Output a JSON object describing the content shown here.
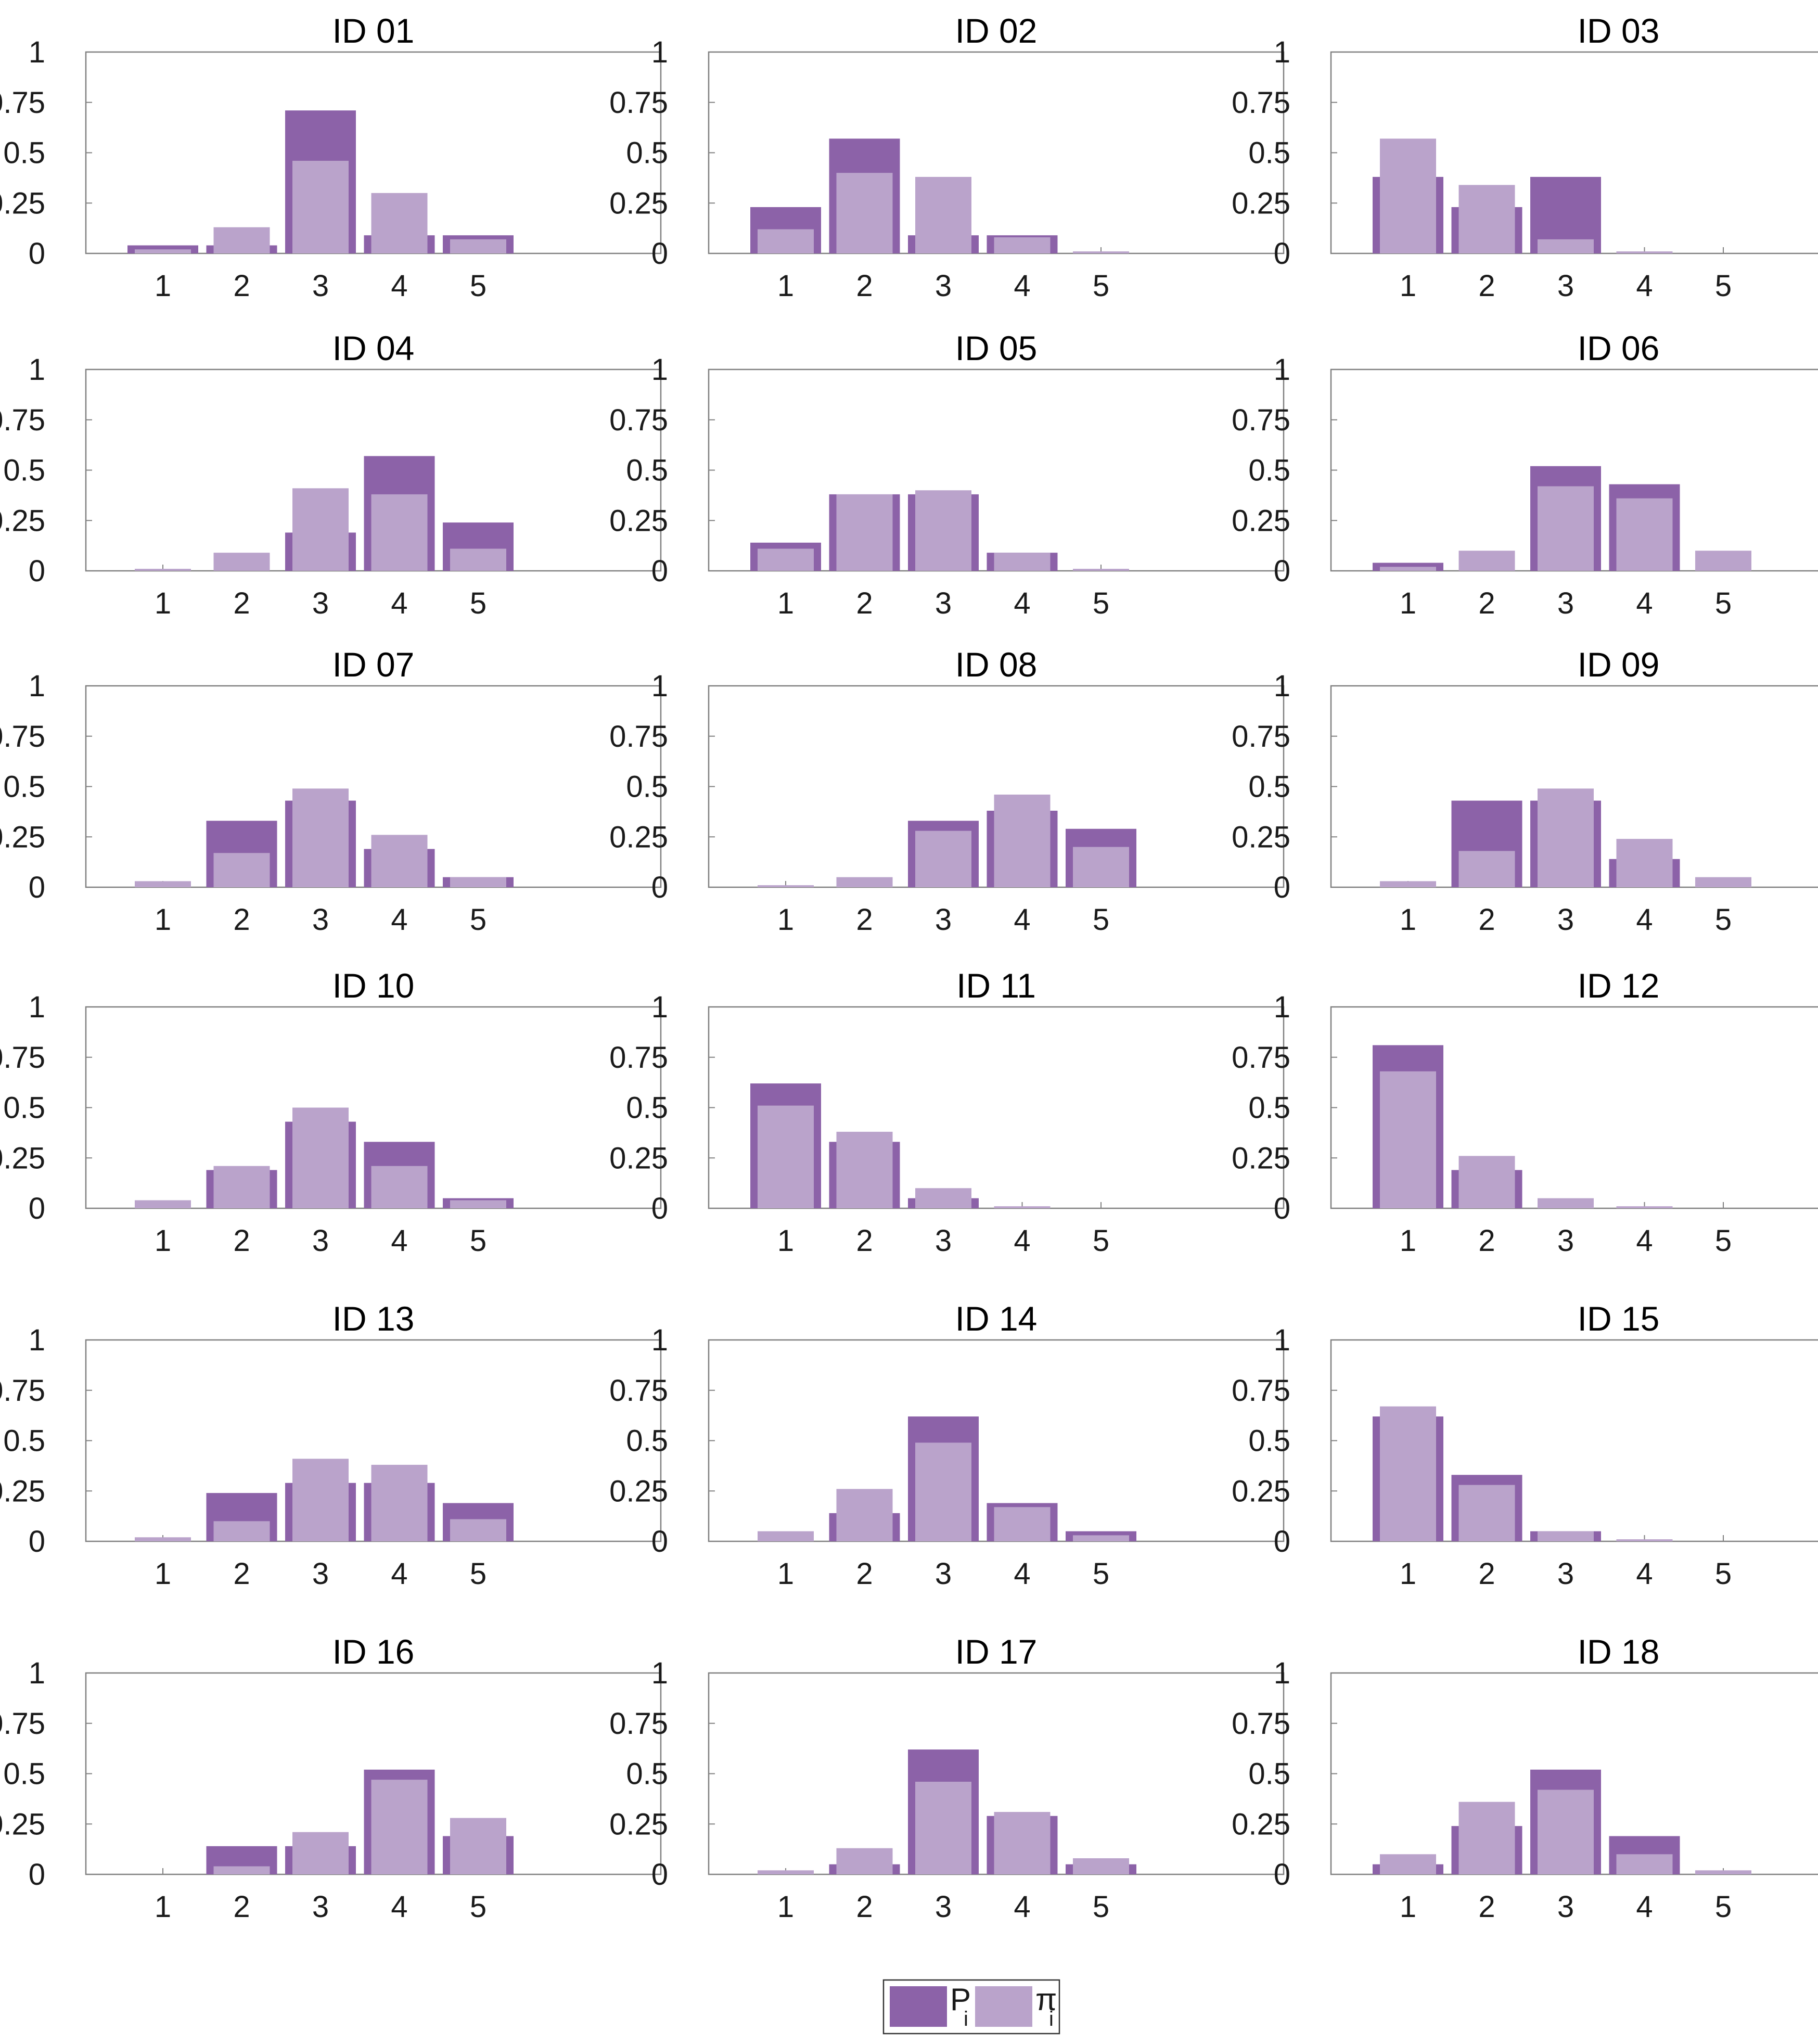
{
  "chart_data": {
    "type": "bar",
    "layout": "grid of 18 small multiples (6 rows x 3 columns)",
    "categories": [
      "1",
      "2",
      "3",
      "4",
      "5"
    ],
    "ylim": [
      0,
      1
    ],
    "yticks": [
      0,
      0.25,
      0.5,
      0.75,
      1
    ],
    "ytick_labels": [
      "0",
      "0.25",
      "0.5",
      "0.75",
      "1"
    ],
    "grid": false,
    "colors": {
      "P": "#8c62a8",
      "pi": "#baa3cb",
      "axis": "#808080"
    },
    "legend": {
      "placement": "bottom-center",
      "entries": [
        {
          "key": "P",
          "symbol": "P",
          "subscript": "i"
        },
        {
          "key": "pi",
          "symbol": "π",
          "subscript": "i"
        }
      ]
    },
    "panels": [
      {
        "title": "ID 01",
        "P": [
          0.04,
          0.04,
          0.71,
          0.09,
          0.09
        ],
        "pi": [
          0.02,
          0.13,
          0.46,
          0.3,
          0.07
        ]
      },
      {
        "title": "ID 02",
        "P": [
          0.23,
          0.57,
          0.09,
          0.09,
          0.0
        ],
        "pi": [
          0.12,
          0.4,
          0.38,
          0.08,
          0.01
        ]
      },
      {
        "title": "ID 03",
        "P": [
          0.38,
          0.23,
          0.38,
          0.0,
          0.0
        ],
        "pi": [
          0.57,
          0.34,
          0.07,
          0.01,
          0.0
        ]
      },
      {
        "title": "ID 04",
        "P": [
          0.0,
          0.0,
          0.19,
          0.57,
          0.24
        ],
        "pi": [
          0.01,
          0.09,
          0.41,
          0.38,
          0.11
        ]
      },
      {
        "title": "ID 05",
        "P": [
          0.14,
          0.38,
          0.38,
          0.09,
          0.0
        ],
        "pi": [
          0.11,
          0.38,
          0.4,
          0.09,
          0.01
        ]
      },
      {
        "title": "ID 06",
        "P": [
          0.04,
          0.0,
          0.52,
          0.43,
          0.0
        ],
        "pi": [
          0.02,
          0.1,
          0.42,
          0.36,
          0.1
        ]
      },
      {
        "title": "ID 07",
        "P": [
          0.0,
          0.33,
          0.43,
          0.19,
          0.05
        ],
        "pi": [
          0.03,
          0.17,
          0.49,
          0.26,
          0.05
        ]
      },
      {
        "title": "ID 08",
        "P": [
          0.0,
          0.0,
          0.33,
          0.38,
          0.29
        ],
        "pi": [
          0.01,
          0.05,
          0.28,
          0.46,
          0.2
        ]
      },
      {
        "title": "ID 09",
        "P": [
          0.0,
          0.43,
          0.43,
          0.14,
          0.0
        ],
        "pi": [
          0.03,
          0.18,
          0.49,
          0.24,
          0.05
        ]
      },
      {
        "title": "ID 10",
        "P": [
          0.0,
          0.19,
          0.43,
          0.33,
          0.05
        ],
        "pi": [
          0.04,
          0.21,
          0.5,
          0.21,
          0.04
        ]
      },
      {
        "title": "ID 11",
        "P": [
          0.62,
          0.33,
          0.05,
          0.0,
          0.0
        ],
        "pi": [
          0.51,
          0.38,
          0.1,
          0.01,
          0.0
        ]
      },
      {
        "title": "ID 12",
        "P": [
          0.81,
          0.19,
          0.0,
          0.0,
          0.0
        ],
        "pi": [
          0.68,
          0.26,
          0.05,
          0.01,
          0.0
        ]
      },
      {
        "title": "ID 13",
        "P": [
          0.0,
          0.24,
          0.29,
          0.29,
          0.19
        ],
        "pi": [
          0.02,
          0.1,
          0.41,
          0.38,
          0.11
        ]
      },
      {
        "title": "ID 14",
        "P": [
          0.0,
          0.14,
          0.62,
          0.19,
          0.05
        ],
        "pi": [
          0.05,
          0.26,
          0.49,
          0.17,
          0.03
        ]
      },
      {
        "title": "ID 15",
        "P": [
          0.62,
          0.33,
          0.05,
          0.0,
          0.0
        ],
        "pi": [
          0.67,
          0.28,
          0.05,
          0.01,
          0.0
        ]
      },
      {
        "title": "ID 16",
        "P": [
          0.0,
          0.14,
          0.14,
          0.52,
          0.19
        ],
        "pi": [
          0.0,
          0.04,
          0.21,
          0.47,
          0.28
        ]
      },
      {
        "title": "ID 17",
        "P": [
          0.0,
          0.05,
          0.62,
          0.29,
          0.05
        ],
        "pi": [
          0.02,
          0.13,
          0.46,
          0.31,
          0.08
        ]
      },
      {
        "title": "ID 18",
        "P": [
          0.05,
          0.24,
          0.52,
          0.19,
          0.0
        ],
        "pi": [
          0.1,
          0.36,
          0.42,
          0.1,
          0.02
        ]
      }
    ]
  }
}
